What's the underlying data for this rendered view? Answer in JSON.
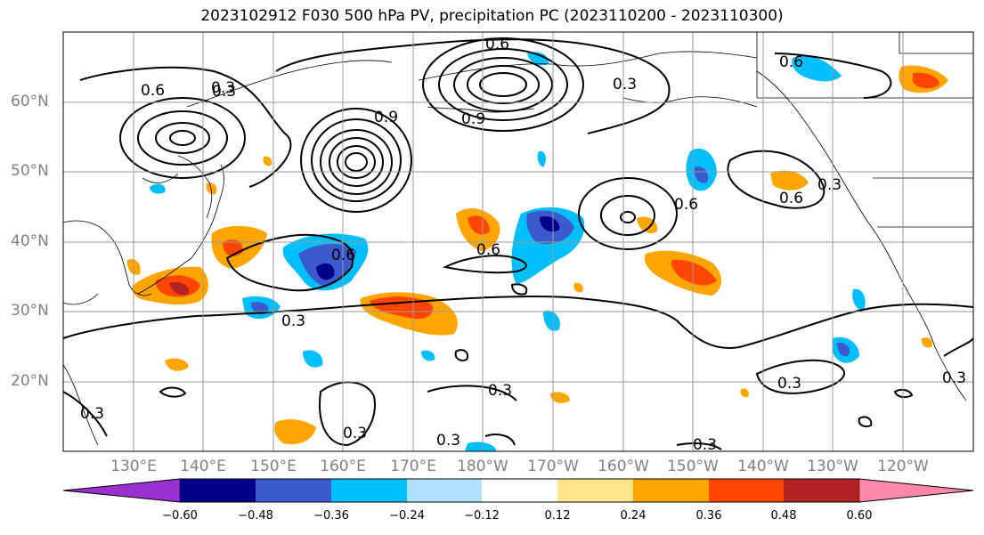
{
  "title": "2023102912 F030 500 hPa PV, precipitation PC (2023110200 - 2023110300)",
  "map": {
    "lat_labels": [
      "60°N",
      "50°N",
      "40°N",
      "30°N",
      "20°N"
    ],
    "lon_labels": [
      "130°E",
      "140°E",
      "150°E",
      "160°E",
      "170°E",
      "180°W",
      "170°W",
      "160°W",
      "150°W",
      "140°W",
      "130°W",
      "120°W"
    ],
    "contour_labels": [
      "0.6",
      "0.3",
      "0.9",
      "0.6",
      "0.3",
      "0.6",
      "0.3",
      "0.3",
      "0.3",
      "0.3",
      "0.3",
      "0.6",
      "0.6",
      "0.3",
      "0.6",
      "0.3",
      "0.3",
      "0.6",
      "0.3",
      "0.9",
      "0.3"
    ],
    "gridline_color": "#9a9a9a"
  },
  "colorbar": {
    "ticks": [
      "−0.60",
      "−0.48",
      "−0.36",
      "−0.24",
      "−0.12",
      "0.12",
      "0.24",
      "0.36",
      "0.48",
      "0.60"
    ],
    "colors": [
      "#9b30d0",
      "#00008b",
      "#3a5acd",
      "#00bfff",
      "#b0e2ff",
      "#ffffff",
      "#ffe68a",
      "#ffa500",
      "#ff4500",
      "#b22222",
      "#ff88aa"
    ]
  }
}
